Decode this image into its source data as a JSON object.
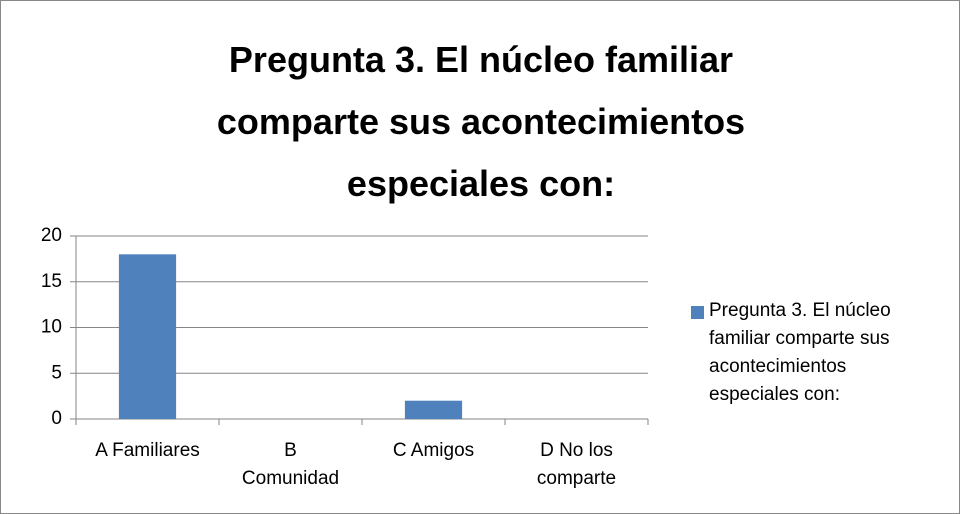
{
  "chart_data": {
    "type": "bar",
    "title": "Pregunta 3. El núcleo familiar comparte sus acontecimientos especiales con:",
    "categories": [
      "A Familiares",
      "B Comunidad",
      "C Amigos",
      "D No los comparte"
    ],
    "series": [
      {
        "name": "Pregunta 3. El núcleo familiar comparte sus acontecimientos especiales con:",
        "color": "#4f81bd",
        "values": [
          18,
          0,
          2,
          0
        ]
      }
    ],
    "ylim": [
      0,
      20
    ],
    "yticks": [
      0,
      5,
      10,
      15,
      20
    ],
    "grid": true,
    "legend": "right"
  }
}
